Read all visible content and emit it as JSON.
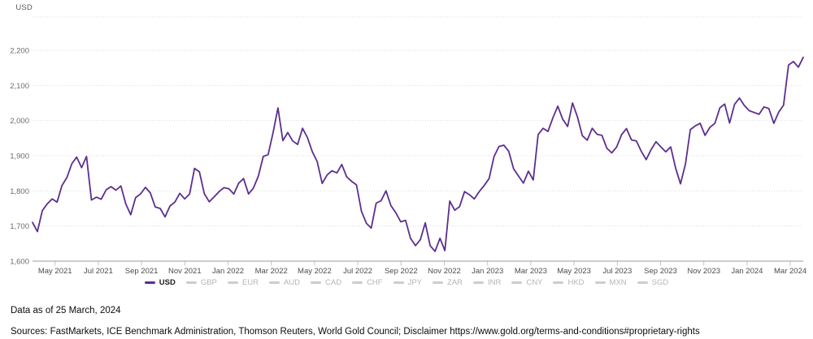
{
  "colors": {
    "line": "#5c2f8e",
    "grid": "#dcdcdc",
    "axis": "#9b9b9b",
    "tick": "#b9c6d9",
    "y_label": "#6b6b6b",
    "x_label": "#4d4d4d",
    "legend_active_text": "#1d1d1d",
    "legend_inactive_text": "#b5b5b5",
    "legend_inactive_dash": "#cdcdcd"
  },
  "chart_data": {
    "type": "line",
    "title": "",
    "unit": "USD",
    "ylabel": "USD",
    "xlabel": "",
    "ylim": [
      1600,
      2292
    ],
    "grid": true,
    "legend_position": "bottom",
    "x_start": "25 March 2021",
    "x_end": "25 March 2024",
    "frequency": "weekly",
    "yticks": [
      2200,
      2100,
      2000,
      1900,
      1800,
      1700,
      1600
    ],
    "ytick_labels": [
      "2,200",
      "2,100",
      "2,000",
      "1,900",
      "1,800",
      "1,700",
      "1,600"
    ],
    "xtick_labels": [
      "May 2021",
      "Jul 2021",
      "Sep 2021",
      "Nov 2021",
      "Jan 2022",
      "Mar 2022",
      "May 2022",
      "Jul 2022",
      "Sep 2022",
      "Nov 2022",
      "Jan 2023",
      "Mar 2023",
      "May 2023",
      "Jul 2023",
      "Sep 2023",
      "Nov 2023",
      "Jan 2024",
      "Mar 2024"
    ],
    "series": [
      {
        "name": "USD",
        "values": [
          1710,
          1684,
          1744,
          1763,
          1777,
          1768,
          1815,
          1838,
          1877,
          1896,
          1866,
          1898,
          1774,
          1782,
          1776,
          1803,
          1812,
          1802,
          1814,
          1763,
          1732,
          1781,
          1791,
          1810,
          1794,
          1754,
          1750,
          1726,
          1757,
          1768,
          1793,
          1777,
          1791,
          1864,
          1854,
          1792,
          1769,
          1783,
          1798,
          1809,
          1806,
          1791,
          1822,
          1835,
          1791,
          1808,
          1842,
          1898,
          1903,
          1966,
          2036,
          1943,
          1966,
          1942,
          1932,
          1978,
          1952,
          1911,
          1883,
          1821,
          1845,
          1857,
          1851,
          1875,
          1840,
          1827,
          1817,
          1742,
          1708,
          1694,
          1765,
          1772,
          1800,
          1758,
          1738,
          1712,
          1716,
          1665,
          1644,
          1661,
          1709,
          1644,
          1628,
          1665,
          1630,
          1771,
          1745,
          1755,
          1798,
          1789,
          1777,
          1798,
          1815,
          1835,
          1897,
          1926,
          1930,
          1913,
          1863,
          1842,
          1822,
          1856,
          1831,
          1960,
          1978,
          1969,
          2008,
          2041,
          2004,
          1983,
          2050,
          2011,
          1957,
          1944,
          1978,
          1961,
          1958,
          1921,
          1908,
          1925,
          1960,
          1977,
          1945,
          1942,
          1913,
          1889,
          1917,
          1940,
          1925,
          1911,
          1925,
          1865,
          1820,
          1876,
          1974,
          1985,
          1992,
          1958,
          1981,
          1992,
          2036,
          2047,
          1993,
          2046,
          2064,
          2043,
          2028,
          2023,
          2018,
          2039,
          2034,
          1992,
          2024,
          2044,
          2158,
          2168,
          2152,
          2180
        ]
      }
    ]
  },
  "legend": {
    "items": [
      {
        "label": "USD",
        "active": true
      },
      {
        "label": "GBP",
        "active": false
      },
      {
        "label": "EUR",
        "active": false
      },
      {
        "label": "AUD",
        "active": false
      },
      {
        "label": "CAD",
        "active": false
      },
      {
        "label": "CHF",
        "active": false
      },
      {
        "label": "JPY",
        "active": false
      },
      {
        "label": "ZAR",
        "active": false
      },
      {
        "label": "INR",
        "active": false
      },
      {
        "label": "CNY",
        "active": false
      },
      {
        "label": "HKD",
        "active": false
      },
      {
        "label": "MXN",
        "active": false
      },
      {
        "label": "SGD",
        "active": false
      }
    ]
  },
  "footer": {
    "data_as_of": "Data as of 25 March, 2024",
    "sources": "Sources: FastMarkets, ICE Benchmark Administration, Thomson Reuters, World Gold Council; Disclaimer https://www.gold.org/terms-and-conditions#proprietary-rights"
  }
}
